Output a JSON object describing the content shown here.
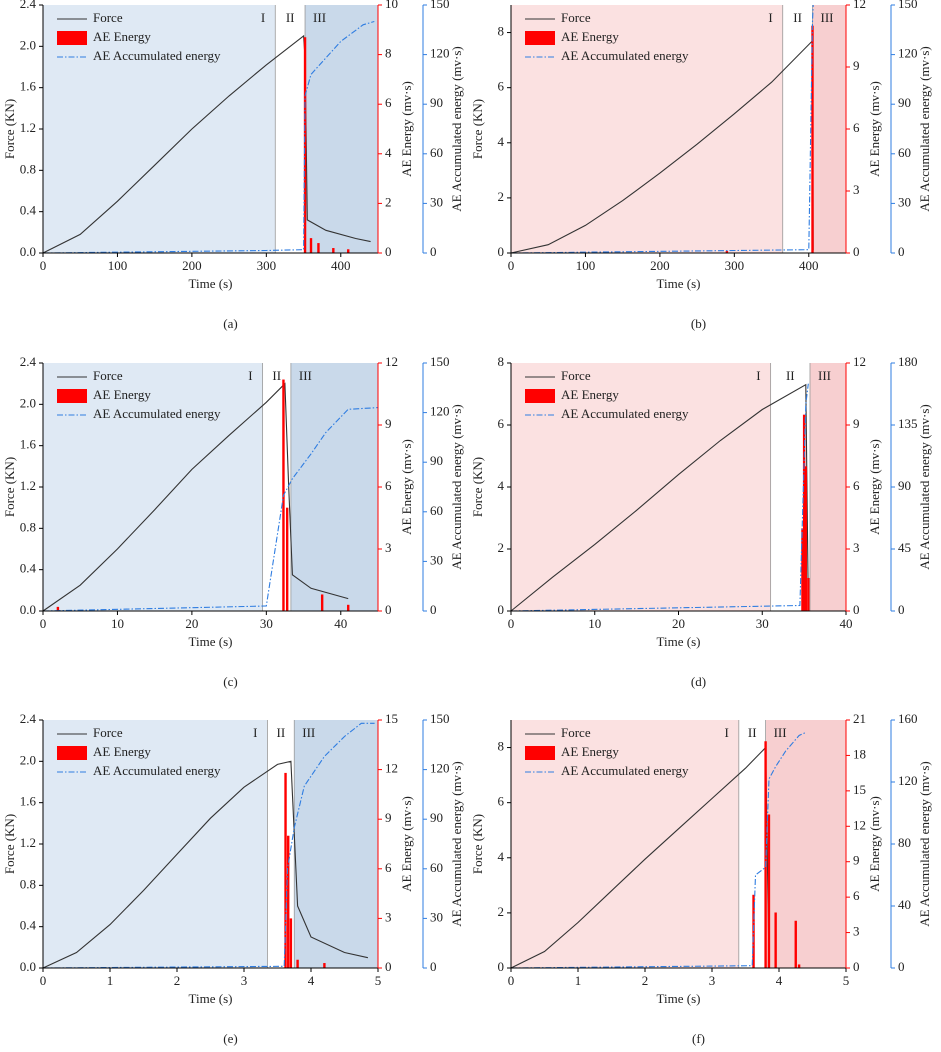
{
  "chart_data": [
    {
      "type": "line",
      "caption": "(a)",
      "xlabel": "Time (s)",
      "ylabel": "Force (KN)",
      "y2label": "AE Energy (mv·s)",
      "y3label": "AE Accumulated energy (mv·s)",
      "xlim": [
        0,
        450
      ],
      "xticks": [
        0,
        100,
        200,
        300,
        400
      ],
      "ylim": [
        0,
        2.4
      ],
      "yticks": [
        {
          "value": 0,
          "label": "0.0"
        },
        0.4,
        0.8,
        1.2,
        1.6,
        {
          "value": 2,
          "label": "2.0"
        },
        2.4
      ],
      "y2lim": [
        0,
        10
      ],
      "y2ticks": [
        0,
        2,
        4,
        6,
        8,
        10
      ],
      "y3lim": [
        0,
        150
      ],
      "y3ticks": [
        0,
        30,
        60,
        90,
        120,
        150
      ],
      "regions": [
        {
          "label": "I",
          "start": 0,
          "end": 312,
          "color": "#dfe9f4"
        },
        {
          "label": "II",
          "start": 312,
          "end": 352,
          "color": "#ffffff"
        },
        {
          "label": "III",
          "start": 352,
          "end": 450,
          "color": "#c9d9ea"
        }
      ],
      "series": [
        {
          "name": "Force",
          "type": "line",
          "axis": "y",
          "color": "#333333",
          "x": [
            0,
            50,
            100,
            150,
            200,
            250,
            300,
            350,
            352,
            355,
            380,
            420,
            440
          ],
          "values": [
            0,
            0.18,
            0.5,
            0.85,
            1.2,
            1.52,
            1.82,
            2.1,
            1.9,
            0.32,
            0.22,
            0.14,
            0.11
          ]
        },
        {
          "name": "AE Energy",
          "type": "bar",
          "axis": "y2",
          "color": "#ff0000",
          "x": [
            352,
            360,
            370,
            390,
            410
          ],
          "values": [
            8.7,
            0.6,
            0.4,
            0.2,
            0.15
          ]
        },
        {
          "name": "AE Accumulated energy",
          "type": "line",
          "line_style": "dash-dot",
          "axis": "y3",
          "color": "#2f7de1",
          "x": [
            0,
            300,
            350,
            352,
            360,
            380,
            400,
            430,
            445
          ],
          "values": [
            0,
            1.5,
            2,
            95,
            108,
            118,
            128,
            138,
            140
          ]
        }
      ]
    },
    {
      "type": "line",
      "caption": "(b)",
      "xlabel": "Time (s)",
      "ylabel": "Force (KN)",
      "y2label": "AE Energy (mv·s)",
      "y3label": "AE Accumulated energy (mv·s)",
      "xlim": [
        0,
        450
      ],
      "xticks": [
        0,
        100,
        200,
        300,
        400
      ],
      "ylim": [
        0,
        9
      ],
      "yticks": [
        0,
        2,
        4,
        6,
        8
      ],
      "y2lim": [
        0,
        12
      ],
      "y2ticks": [
        0,
        3,
        6,
        9,
        12
      ],
      "y3lim": [
        0,
        150
      ],
      "y3ticks": [
        0,
        30,
        60,
        90,
        120,
        150
      ],
      "regions": [
        {
          "label": "I",
          "start": 0,
          "end": 365,
          "color": "#fbe1e1"
        },
        {
          "label": "II",
          "start": 365,
          "end": 405,
          "color": "#ffffff"
        },
        {
          "label": "III",
          "start": 405,
          "end": 450,
          "color": "#f7cfd0"
        }
      ],
      "series": [
        {
          "name": "Force",
          "type": "line",
          "axis": "y",
          "color": "#333333",
          "x": [
            0,
            50,
            100,
            150,
            200,
            250,
            300,
            350,
            405,
            406
          ],
          "values": [
            0,
            0.3,
            1,
            1.9,
            2.9,
            3.95,
            5.05,
            6.2,
            7.7,
            0.1
          ]
        },
        {
          "name": "AE Energy",
          "type": "bar",
          "axis": "y2",
          "color": "#ff0000",
          "x": [
            290,
            405
          ],
          "values": [
            0.1,
            11
          ]
        },
        {
          "name": "AE Accumulated energy",
          "type": "line",
          "line_style": "dash-dot",
          "axis": "y3",
          "color": "#2f7de1",
          "x": [
            0,
            400,
            405,
            406
          ],
          "values": [
            0,
            2,
            140,
            150
          ]
        }
      ]
    },
    {
      "type": "line",
      "caption": "(c)",
      "xlabel": "Time (s)",
      "ylabel": "Force (KN)",
      "y2label": "AE Energy (mv·s)",
      "y3label": "AE Accumulated energy (mv·s)",
      "xlim": [
        0,
        45
      ],
      "xticks": [
        0,
        10,
        20,
        30,
        40
      ],
      "ylim": [
        0,
        2.4
      ],
      "yticks": [
        {
          "value": 0,
          "label": "0.0"
        },
        0.4,
        0.8,
        1.2,
        1.6,
        {
          "value": 2,
          "label": "2.0"
        },
        2.4
      ],
      "y2lim": [
        0,
        12
      ],
      "y2ticks": [
        0,
        3,
        6,
        9,
        12
      ],
      "y3lim": [
        0,
        150
      ],
      "y3ticks": [
        0,
        30,
        60,
        90,
        120,
        150
      ],
      "regions": [
        {
          "label": "I",
          "start": 0,
          "end": 29.5,
          "color": "#dfe9f4"
        },
        {
          "label": "II",
          "start": 29.5,
          "end": 33.3,
          "color": "#ffffff"
        },
        {
          "label": "III",
          "start": 33.3,
          "end": 45,
          "color": "#c9d9ea"
        }
      ],
      "series": [
        {
          "name": "Force",
          "type": "line",
          "axis": "y",
          "color": "#333333",
          "x": [
            0,
            5,
            10,
            15,
            20,
            25,
            30,
            32.5,
            33,
            33.5,
            36,
            41
          ],
          "values": [
            0,
            0.25,
            0.6,
            0.98,
            1.37,
            1.7,
            2.02,
            2.2,
            1.2,
            0.35,
            0.22,
            0.12
          ]
        },
        {
          "name": "AE Energy",
          "type": "bar",
          "axis": "y2",
          "color": "#ff0000",
          "x": [
            2,
            32.3,
            32.8,
            37.5,
            41
          ],
          "values": [
            0.2,
            11.2,
            5,
            0.8,
            0.3
          ]
        },
        {
          "name": "AE Accumulated energy",
          "type": "line",
          "line_style": "dash-dot",
          "axis": "y3",
          "color": "#2f7de1",
          "x": [
            0,
            30,
            32.3,
            33.5,
            36,
            38,
            41,
            45
          ],
          "values": [
            0,
            3,
            70,
            80,
            95,
            108,
            122,
            123
          ]
        }
      ]
    },
    {
      "type": "line",
      "caption": "(d)",
      "xlabel": "Time (s)",
      "ylabel": "Force (KN)",
      "y2label": "AE Energy (mv·s)",
      "y3label": "AE Accumulated energy (mv·s)",
      "xlim": [
        0,
        40
      ],
      "xticks": [
        0,
        10,
        20,
        30,
        40
      ],
      "ylim": [
        0,
        8
      ],
      "yticks": [
        0,
        2,
        4,
        6,
        8
      ],
      "y2lim": [
        0,
        12
      ],
      "y2ticks": [
        0,
        3,
        6,
        9,
        12
      ],
      "y3lim": [
        0,
        180
      ],
      "y3ticks": [
        0,
        45,
        90,
        135,
        180
      ],
      "regions": [
        {
          "label": "I",
          "start": 0,
          "end": 31,
          "color": "#fbe1e1"
        },
        {
          "label": "II",
          "start": 31,
          "end": 35.7,
          "color": "#ffffff"
        },
        {
          "label": "III",
          "start": 35.7,
          "end": 40,
          "color": "#f7cfd0"
        }
      ],
      "series": [
        {
          "name": "Force",
          "type": "line",
          "axis": "y",
          "color": "#333333",
          "x": [
            0,
            5,
            10,
            15,
            20,
            25,
            30,
            35.2,
            35.5
          ],
          "values": [
            0,
            1.1,
            2.15,
            3.25,
            4.4,
            5.5,
            6.5,
            7.3,
            0.2
          ]
        },
        {
          "name": "AE Energy",
          "type": "bar",
          "axis": "y2",
          "color": "#ff0000",
          "x": [
            34.8,
            35,
            35.2,
            35.5
          ],
          "values": [
            4,
            9.5,
            7,
            1.6
          ]
        },
        {
          "name": "AE Accumulated energy",
          "type": "line",
          "line_style": "dash-dot",
          "axis": "y3",
          "color": "#2f7de1",
          "x": [
            0,
            34.5,
            35.2,
            35.5
          ],
          "values": [
            0,
            4,
            150,
            165
          ]
        }
      ]
    },
    {
      "type": "line",
      "caption": "(e)",
      "xlabel": "Time (s)",
      "ylabel": "Force (KN)",
      "y2label": "AE Energy (mv·s)",
      "y3label": "AE Accumulated energy (mv·s)",
      "xlim": [
        0,
        5
      ],
      "xticks": [
        0,
        1,
        2,
        3,
        4,
        5
      ],
      "ylim": [
        0,
        2.4
      ],
      "yticks": [
        {
          "value": 0,
          "label": "0.0"
        },
        0.4,
        0.8,
        1.2,
        1.6,
        {
          "value": 2,
          "label": "2.0"
        },
        2.4
      ],
      "y2lim": [
        0,
        15
      ],
      "y2ticks": [
        0,
        3,
        6,
        9,
        12,
        15
      ],
      "y3lim": [
        0,
        150
      ],
      "y3ticks": [
        0,
        30,
        60,
        90,
        120,
        150
      ],
      "regions": [
        {
          "label": "I",
          "start": 0,
          "end": 3.35,
          "color": "#dfe9f4"
        },
        {
          "label": "II",
          "start": 3.35,
          "end": 3.75,
          "color": "#ffffff"
        },
        {
          "label": "III",
          "start": 3.75,
          "end": 5,
          "color": "#c9d9ea"
        }
      ],
      "series": [
        {
          "name": "Force",
          "type": "line",
          "axis": "y",
          "color": "#333333",
          "x": [
            0,
            0.5,
            1,
            1.5,
            2,
            2.5,
            3,
            3.5,
            3.7,
            3.8,
            4,
            4.5,
            4.85
          ],
          "values": [
            0,
            0.15,
            0.42,
            0.75,
            1.1,
            1.45,
            1.75,
            1.97,
            2,
            0.6,
            0.3,
            0.15,
            0.1
          ]
        },
        {
          "name": "AE Energy",
          "type": "bar",
          "axis": "y2",
          "color": "#ff0000",
          "x": [
            3.62,
            3.66,
            3.7,
            3.8,
            4.2
          ],
          "values": [
            11.8,
            8,
            3,
            0.5,
            0.3
          ]
        },
        {
          "name": "AE Accumulated energy",
          "type": "line",
          "line_style": "dash-dot",
          "axis": "y3",
          "color": "#2f7de1",
          "x": [
            0,
            3.6,
            3.65,
            3.75,
            3.9,
            4.2,
            4.5,
            4.75,
            4.95
          ],
          "values": [
            0,
            1,
            60,
            85,
            110,
            128,
            140,
            148,
            148
          ]
        }
      ]
    },
    {
      "type": "line",
      "caption": "(f)",
      "xlabel": "Time (s)",
      "ylabel": "Force (KN)",
      "y2label": "AE Energy (mv·s)",
      "y3label": "AE Accumulated energy (mv·s)",
      "xlim": [
        0,
        5
      ],
      "xticks": [
        0,
        1,
        2,
        3,
        4,
        5
      ],
      "ylim": [
        0,
        9
      ],
      "yticks": [
        0,
        2,
        4,
        6,
        8
      ],
      "y2lim": [
        0,
        21
      ],
      "y2ticks": [
        0,
        3,
        6,
        9,
        12,
        15,
        18,
        21
      ],
      "y3lim": [
        0,
        160
      ],
      "y3ticks": [
        0,
        40,
        80,
        120,
        160
      ],
      "regions": [
        {
          "label": "I",
          "start": 0,
          "end": 3.4,
          "color": "#fbe1e1"
        },
        {
          "label": "II",
          "start": 3.4,
          "end": 3.8,
          "color": "#ffffff"
        },
        {
          "label": "III",
          "start": 3.8,
          "end": 5,
          "color": "#f7cfd0"
        }
      ],
      "series": [
        {
          "name": "Force",
          "type": "line",
          "axis": "y",
          "color": "#333333",
          "x": [
            0,
            0.5,
            1,
            1.5,
            2,
            2.5,
            3,
            3.5,
            3.8,
            3.85
          ],
          "values": [
            0,
            0.6,
            1.65,
            2.8,
            3.95,
            5.05,
            6.15,
            7.25,
            8,
            0.1
          ]
        },
        {
          "name": "AE Energy",
          "type": "bar",
          "axis": "y2",
          "color": "#ff0000",
          "x": [
            3.62,
            3.8,
            3.85,
            3.95,
            4.25,
            4.3
          ],
          "values": [
            6.2,
            19.2,
            13,
            4.7,
            4,
            0.3
          ]
        },
        {
          "name": "AE Accumulated energy",
          "type": "line",
          "line_style": "dash-dot",
          "axis": "y3",
          "color": "#2f7de1",
          "x": [
            0,
            3.6,
            3.65,
            3.8,
            3.85,
            3.95,
            4.1,
            4.3,
            4.4
          ],
          "values": [
            0,
            1.5,
            60,
            65,
            122,
            130,
            140,
            150,
            152
          ]
        }
      ]
    }
  ]
}
